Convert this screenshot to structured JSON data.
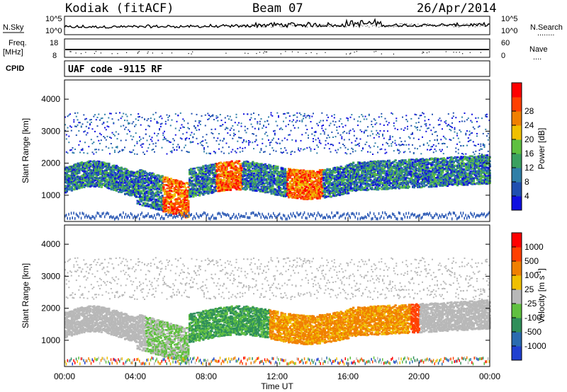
{
  "header": {
    "site": "Kodiak (fitACF)",
    "beam": "Beam 07",
    "date": "26/Apr/2014"
  },
  "top_panels": {
    "nsky_label": "N.Sky",
    "nsearch_label": "N.Search",
    "nsearch_marker": "........",
    "freq_label": "Freq.",
    "freq_unit": "[MHz]",
    "nave_label": "Nave",
    "nave_marker": "....",
    "cpid_label": "CPID",
    "cpid_text": "UAF code -9115 RF",
    "noise_ticks_left": [
      "10^5",
      "10^0"
    ],
    "noise_ticks_right": [
      "10^5",
      "10^0"
    ],
    "freq_ticks": [
      "18",
      "8"
    ],
    "nave_ticks": [
      "60",
      "0"
    ]
  },
  "chart_data": [
    {
      "type": "heatmap",
      "name": "power",
      "ylabel": "Slant Range [km]",
      "yticks": [
        "1000",
        "2000",
        "3000",
        "4000"
      ],
      "ylim": [
        180,
        4600
      ],
      "xlim": [
        0,
        24
      ],
      "colorbar": {
        "label": "Power [dB]",
        "ticks": [
          "4",
          "8",
          "12",
          "16",
          "20",
          "24",
          "28"
        ],
        "colors": [
          "#1010e0",
          "#1f4fb0",
          "#2f7fa8",
          "#3aa060",
          "#5fc040",
          "#f0c000",
          "#f08000",
          "#ff4000",
          "#ff0000"
        ]
      }
    },
    {
      "type": "heatmap",
      "name": "velocity",
      "ylabel": "Slant Range [km]",
      "yticks": [
        "1000",
        "2000",
        "3000",
        "4000"
      ],
      "ylim": [
        180,
        4600
      ],
      "xlim": [
        0,
        24
      ],
      "xlabel": "Time UT",
      "xticks": [
        "00:00",
        "04:00",
        "08:00",
        "12:00",
        "16:00",
        "20:00",
        "00:00"
      ],
      "colorbar": {
        "label": "Velocity [m s",
        "label_sup": "-1",
        "ticks": [
          "1000",
          "500",
          "100",
          "25",
          "-25",
          "-100",
          "-500",
          "-1000"
        ],
        "colors": [
          "#2040d0",
          "#2a6bb0",
          "#2f8f5a",
          "#60c040",
          "#b8b8b8",
          "#f0c000",
          "#f08000",
          "#ff4000",
          "#ff0000"
        ]
      }
    }
  ]
}
